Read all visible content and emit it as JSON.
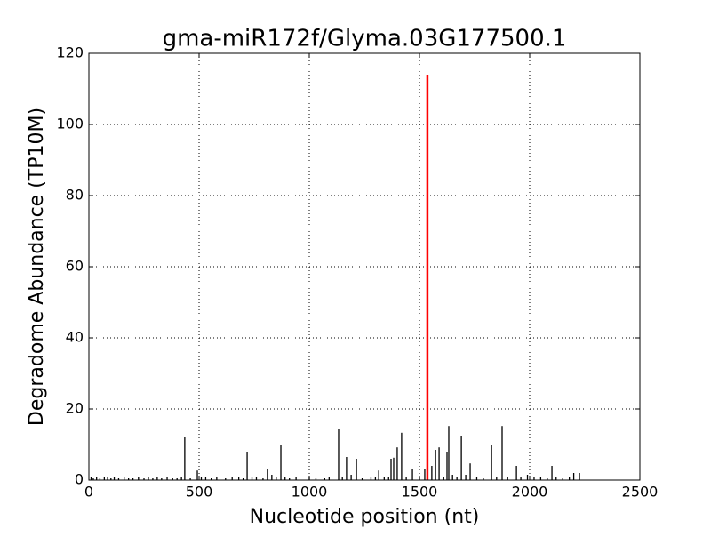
{
  "chart_data": {
    "type": "stem",
    "title": "gma-miR172f/Glyma.03G177500.1",
    "xlabel": "Nucleotide position (nt)",
    "ylabel": "Degradome Abundance (TP10M)",
    "xlim": [
      0,
      2500
    ],
    "xticks": [
      0,
      500,
      1000,
      1500,
      2000,
      2500
    ],
    "ylim": [
      0,
      120
    ],
    "yticks": [
      0,
      20,
      40,
      60,
      80,
      100,
      120
    ],
    "grid": true,
    "series": [
      {
        "color": "#000000",
        "x": [
          10,
          20,
          35,
          50,
          70,
          85,
          100,
          115,
          135,
          160,
          180,
          200,
          225,
          250,
          270,
          290,
          310,
          330,
          355,
          380,
          400,
          420,
          435,
          460,
          492,
          510,
          530,
          555,
          580,
          620,
          650,
          680,
          700,
          718,
          740,
          760,
          790,
          810,
          830,
          850,
          871,
          890,
          910,
          940,
          1000,
          1030,
          1070,
          1090,
          1133,
          1150,
          1169,
          1190,
          1214,
          1240,
          1280,
          1300,
          1315,
          1340,
          1360,
          1371,
          1383,
          1399,
          1419,
          1440,
          1468,
          1500,
          1524,
          1556,
          1573,
          1589,
          1610,
          1625,
          1633,
          1650,
          1670,
          1690,
          1710,
          1730,
          1760,
          1790,
          1827,
          1850,
          1875,
          1900,
          1940,
          1960,
          1990,
          2020,
          2050,
          2080,
          2101,
          2120,
          2150,
          2180,
          2200,
          2226
        ],
        "values": [
          1,
          0.5,
          1,
          0.5,
          1,
          1,
          0.5,
          1,
          0.5,
          1,
          0.5,
          0.5,
          1,
          0.5,
          1,
          0.5,
          1,
          0.5,
          1,
          0.5,
          0.5,
          1,
          12,
          0.5,
          2.7,
          1,
          1,
          0.5,
          1,
          0.5,
          1,
          1,
          0.5,
          8,
          1,
          1,
          0.5,
          3,
          1.5,
          1,
          10,
          1,
          0.5,
          1,
          1,
          0.5,
          0.5,
          1,
          14.5,
          1,
          6.5,
          1.5,
          6,
          0.5,
          1,
          1,
          2.7,
          1,
          1,
          6,
          6.3,
          9.2,
          13.3,
          1,
          3.2,
          1,
          3.2,
          4,
          8.5,
          9.2,
          1,
          8,
          15.2,
          1.5,
          1,
          12.5,
          1.5,
          4.7,
          1,
          0.5,
          10,
          1,
          15.2,
          1,
          4,
          1,
          1.5,
          1,
          1,
          0.5,
          4,
          1,
          0.5,
          1,
          2,
          2
        ]
      },
      {
        "color": "#ff0000",
        "x": [
          1536
        ],
        "values": [
          114
        ]
      }
    ]
  }
}
